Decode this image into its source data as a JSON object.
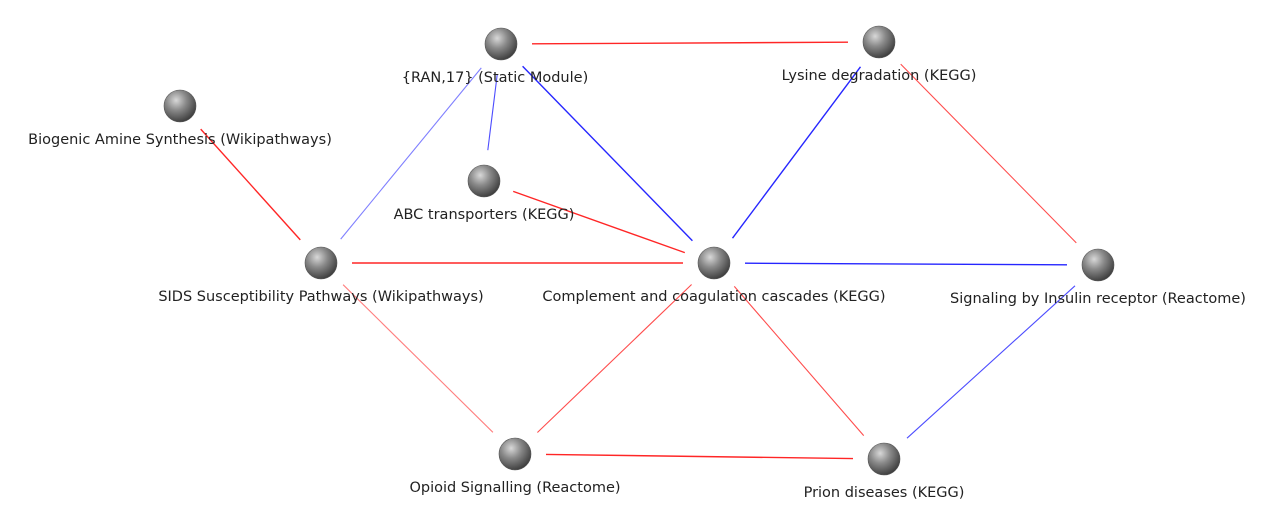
{
  "colors": {
    "positive_edge": "#ff0000",
    "negative_edge": "#0000ff",
    "node_fill": "#808080",
    "label_text": "#222222"
  },
  "nodes": [
    {
      "id": "ran17",
      "label": "{RAN,17} (Static Module)"
    },
    {
      "id": "lysine",
      "label": "Lysine degradation (KEGG)"
    },
    {
      "id": "biogenic",
      "label": "Biogenic Amine Synthesis (Wikipathways)"
    },
    {
      "id": "abc",
      "label": "ABC transporters (KEGG)"
    },
    {
      "id": "sids",
      "label": "SIDS Susceptibility Pathways (Wikipathways)"
    },
    {
      "id": "complement",
      "label": "Complement and coagulation cascades (KEGG)"
    },
    {
      "id": "insulin",
      "label": "Signaling by Insulin receptor (Reactome)"
    },
    {
      "id": "opioid",
      "label": "Opioid Signalling (Reactome)"
    },
    {
      "id": "prion",
      "label": "Prion diseases (KEGG)"
    }
  ],
  "edges": [
    {
      "source": "ran17",
      "target": "lysine",
      "color": "red",
      "strength": "strong"
    },
    {
      "source": "ran17",
      "target": "abc",
      "color": "blue",
      "strength": "medium"
    },
    {
      "source": "ran17",
      "target": "sids",
      "color": "blue",
      "strength": "weak"
    },
    {
      "source": "ran17",
      "target": "complement",
      "color": "blue",
      "strength": "strong"
    },
    {
      "source": "lysine",
      "target": "complement",
      "color": "blue",
      "strength": "strong"
    },
    {
      "source": "lysine",
      "target": "insulin",
      "color": "red",
      "strength": "medium"
    },
    {
      "source": "biogenic",
      "target": "sids",
      "color": "red",
      "strength": "strong"
    },
    {
      "source": "abc",
      "target": "complement",
      "color": "red",
      "strength": "strong"
    },
    {
      "source": "sids",
      "target": "complement",
      "color": "red",
      "strength": "strong"
    },
    {
      "source": "sids",
      "target": "opioid",
      "color": "red",
      "strength": "weak"
    },
    {
      "source": "complement",
      "target": "insulin",
      "color": "blue",
      "strength": "strong"
    },
    {
      "source": "complement",
      "target": "opioid",
      "color": "red",
      "strength": "medium"
    },
    {
      "source": "complement",
      "target": "prion",
      "color": "red",
      "strength": "medium"
    },
    {
      "source": "opioid",
      "target": "prion",
      "color": "red",
      "strength": "strong"
    },
    {
      "source": "insulin",
      "target": "prion",
      "color": "blue",
      "strength": "medium"
    }
  ]
}
